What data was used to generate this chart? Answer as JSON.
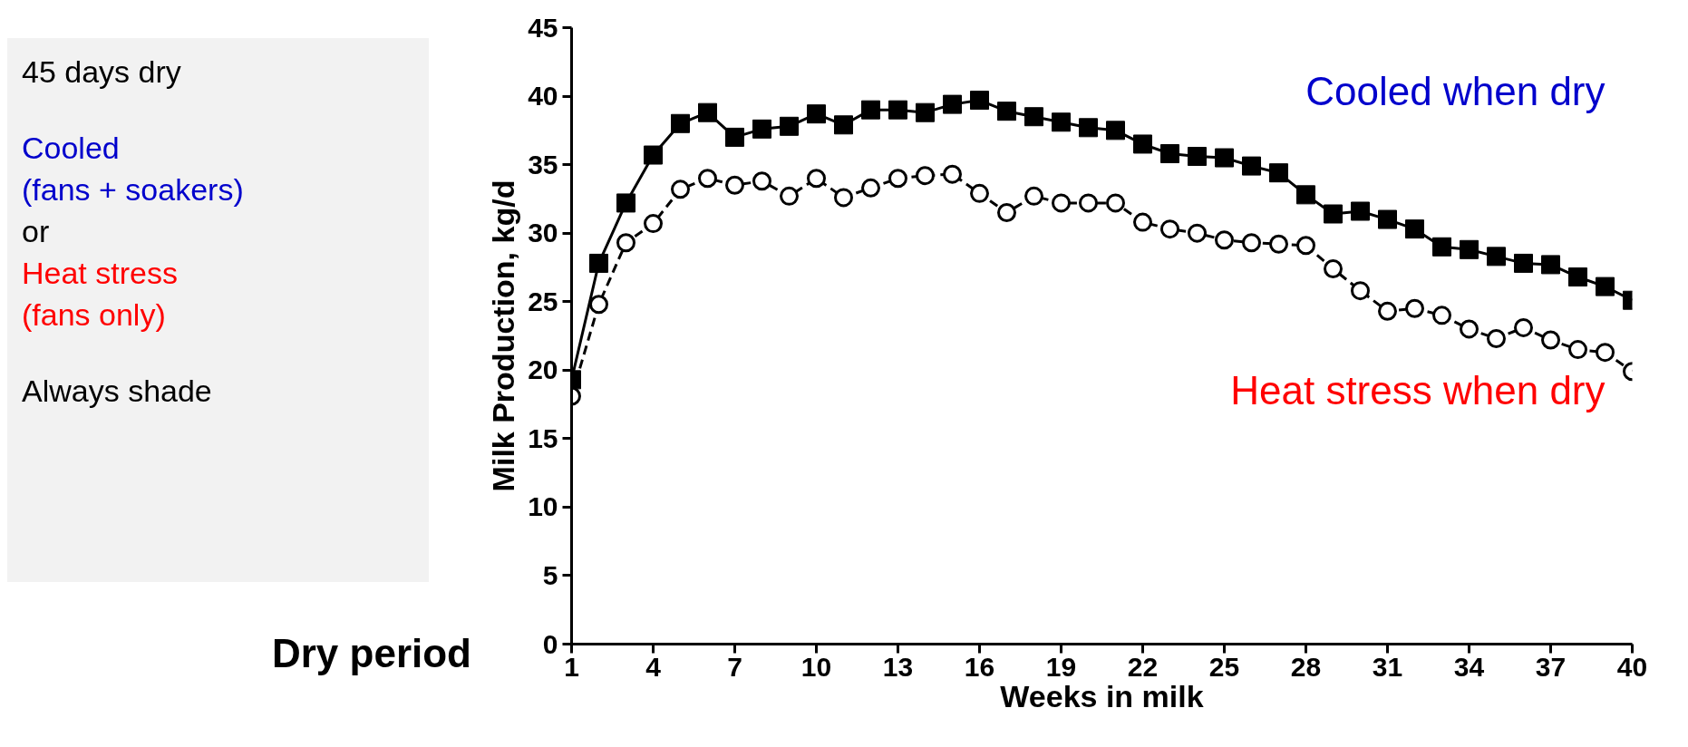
{
  "chart_data": {
    "type": "line",
    "xlabel": "Weeks in milk",
    "ylabel": "Milk Production, kg/d",
    "x": [
      1,
      2,
      3,
      4,
      5,
      6,
      7,
      8,
      9,
      10,
      11,
      12,
      13,
      14,
      15,
      16,
      17,
      18,
      19,
      20,
      21,
      22,
      23,
      24,
      25,
      26,
      27,
      28,
      29,
      30,
      31,
      32,
      33,
      34,
      35,
      36,
      37,
      38,
      39,
      40
    ],
    "series": [
      {
        "name": "Cooled when dry",
        "color": "#000000",
        "marker": "square",
        "line_style": "solid",
        "values": [
          19.3,
          27.8,
          32.2,
          35.7,
          38,
          38.8,
          37,
          37.6,
          37.8,
          38.7,
          37.9,
          39,
          39,
          38.8,
          39.4,
          39.7,
          38.9,
          38.5,
          38.1,
          37.7,
          37.5,
          36.5,
          35.8,
          35.6,
          35.5,
          34.9,
          34.4,
          32.8,
          31.4,
          31.6,
          31,
          30.3,
          29,
          28.8,
          28.3,
          27.8,
          27.7,
          26.8,
          26.1,
          25.1
        ]
      },
      {
        "name": "Heat stress when dry",
        "color": "#000000",
        "marker": "circle",
        "line_style": "dashed",
        "values": [
          18.1,
          24.8,
          29.3,
          30.7,
          33.2,
          34,
          33.5,
          33.8,
          32.7,
          34,
          32.6,
          33.3,
          34,
          34.2,
          34.3,
          32.9,
          31.5,
          32.7,
          32.2,
          32.2,
          32.2,
          30.8,
          30.3,
          30,
          29.5,
          29.3,
          29.2,
          29.1,
          27.4,
          25.8,
          24.3,
          24.5,
          24,
          23,
          22.3,
          23.1,
          22.2,
          21.5,
          21.3,
          19.9
        ]
      }
    ],
    "xlim": [
      1,
      40
    ],
    "xticks": [
      1,
      4,
      7,
      10,
      13,
      16,
      19,
      22,
      25,
      28,
      31,
      34,
      37,
      40
    ],
    "ylim": [
      0,
      45
    ],
    "yticks": [
      0,
      5,
      10,
      15,
      20,
      25,
      30,
      35,
      40,
      45
    ],
    "annotations": [
      "45 days dry",
      "Cooled",
      "(fans + soakers)",
      "or",
      "Heat stress",
      "(fans only)",
      "Always shade",
      "Dry period"
    ]
  }
}
